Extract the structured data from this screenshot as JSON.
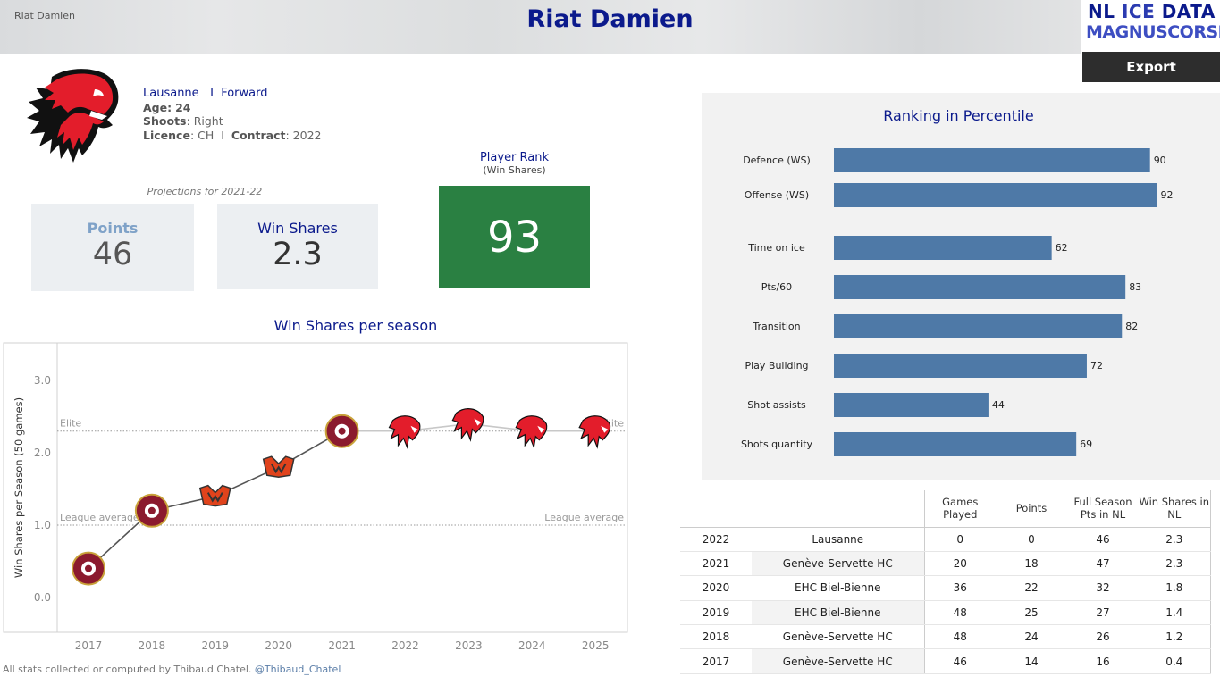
{
  "header": {
    "sheet_name": "Riat Damien",
    "title": "Riat Damien",
    "brand_line1_a": "NL ",
    "brand_line1_b": "ICE",
    "brand_line1_c": " DATA",
    "brand_line2": "MAGNUSCORSI",
    "export_label": "Export"
  },
  "player": {
    "team": "Lausanne",
    "separator": "I",
    "position": "Forward",
    "age_label": "Age:",
    "age": "24",
    "shoots_label": "Shoots",
    "shoots": "Right",
    "licence_label": "Licence",
    "licence": "CH",
    "contract_label": "Contract",
    "contract": "2022"
  },
  "projections": {
    "label": "Projections for 2021-22",
    "points_label": "Points",
    "points_value": "46",
    "ws_label": "Win Shares",
    "ws_value": "2.3"
  },
  "rank": {
    "label": "Player Rank",
    "sub": "(Win Shares)",
    "value": "93",
    "color": "#2a8042"
  },
  "ws_chart_title": "Win Shares per season",
  "chart_data": [
    {
      "type": "line",
      "title": "Win Shares per season",
      "ylabel": "Win Shares per Season (50 games)",
      "xlabel": "",
      "x": [
        "2017",
        "2018",
        "2019",
        "2020",
        "2021",
        "2022",
        "2023",
        "2024",
        "2025"
      ],
      "series": [
        {
          "values": [
            0.4,
            1.2,
            1.4,
            1.8,
            2.3,
            2.3,
            2.4,
            2.3,
            2.3
          ],
          "teams": [
            "Genève-Servette HC",
            "Genève-Servette HC",
            "EHC Biel-Bienne",
            "EHC Biel-Bienne",
            "Genève-Servette HC",
            "Lausanne",
            "Lausanne",
            "Lausanne",
            "Lausanne"
          ]
        }
      ],
      "ylim": [
        -0.3,
        3.5
      ],
      "yticks": [
        "0.0",
        "1.0",
        "2.0",
        "3.0"
      ],
      "reference_lines": [
        {
          "label": "Elite",
          "value": 2.3
        },
        {
          "label": "League average",
          "value": 1.0
        }
      ],
      "grid": false
    },
    {
      "type": "bar",
      "title": "Ranking in Percentile",
      "categories": [
        "Defence (WS)",
        "Offense (WS)",
        "Time on ice",
        "Pts/60",
        "Transition",
        "Play Building",
        "Shot assists",
        "Shots quantity"
      ],
      "values": [
        90,
        92,
        62,
        83,
        82,
        72,
        44,
        69
      ],
      "xlim": [
        0,
        100
      ],
      "color": "#4e79a7",
      "orientation": "horizontal"
    }
  ],
  "table": {
    "headers": [
      "Games Played",
      "Points",
      "Full Season Pts in NL",
      "Win Shares in NL"
    ],
    "rows": [
      {
        "year": "2022",
        "team": "Lausanne",
        "gp": "0",
        "pts": "0",
        "fs": "46",
        "ws": "2.3"
      },
      {
        "year": "2021",
        "team": "Genève-Servette HC",
        "gp": "20",
        "pts": "18",
        "fs": "47",
        "ws": "2.3"
      },
      {
        "year": "2020",
        "team": "EHC Biel-Bienne",
        "gp": "36",
        "pts": "22",
        "fs": "32",
        "ws": "1.8"
      },
      {
        "year": "2019",
        "team": "EHC Biel-Bienne",
        "gp": "48",
        "pts": "25",
        "fs": "27",
        "ws": "1.4"
      },
      {
        "year": "2018",
        "team": "Genève-Servette HC",
        "gp": "48",
        "pts": "24",
        "fs": "26",
        "ws": "1.2"
      },
      {
        "year": "2017",
        "team": "Genève-Servette HC",
        "gp": "46",
        "pts": "14",
        "fs": "16",
        "ws": "0.4"
      }
    ]
  },
  "footer": {
    "text": "All stats collected or computed by Thibaud Chatel. ",
    "handle": "@Thibaud_Chatel"
  },
  "colors": {
    "title_blue": "#0b1a8c",
    "bar_blue": "#4e79a7",
    "rank_green": "#2a8042",
    "lausanne_red": "#e31d2b",
    "geneve_maroon": "#8b1a2e",
    "biel_orange": "#e0431c"
  }
}
